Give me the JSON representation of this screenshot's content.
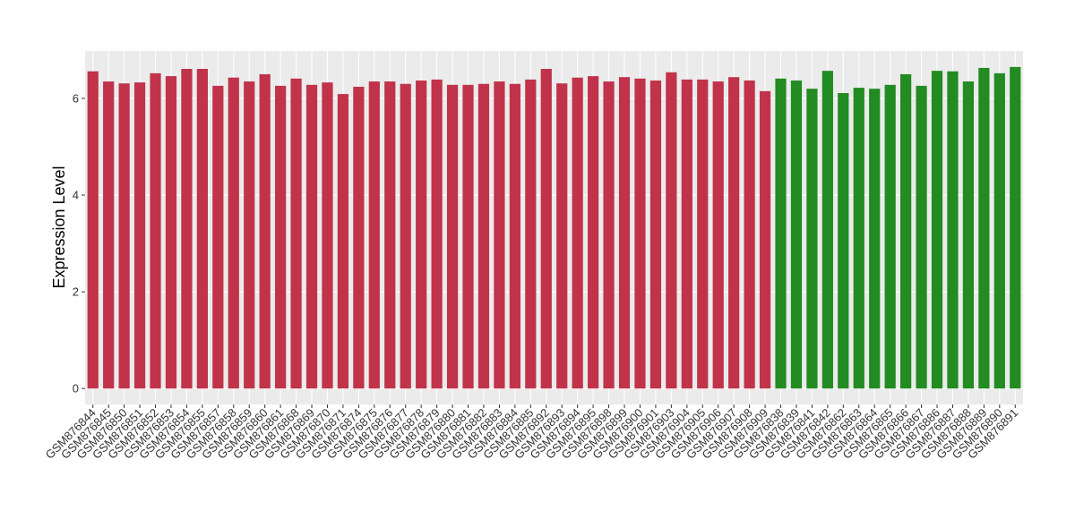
{
  "chart_data": {
    "type": "bar",
    "y_label": "Expression Level",
    "categories": [
      "GSM876844",
      "GSM876845",
      "GSM876850",
      "GSM876851",
      "GSM876852",
      "GSM876853",
      "GSM876854",
      "GSM876855",
      "GSM876857",
      "GSM876858",
      "GSM876859",
      "GSM876860",
      "GSM876861",
      "GSM876868",
      "GSM876869",
      "GSM876870",
      "GSM876871",
      "GSM876874",
      "GSM876875",
      "GSM876876",
      "GSM876877",
      "GSM876878",
      "GSM876879",
      "GSM876880",
      "GSM876881",
      "GSM876882",
      "GSM876883",
      "GSM876884",
      "GSM876885",
      "GSM876892",
      "GSM876893",
      "GSM876894",
      "GSM876895",
      "GSM876898",
      "GSM876899",
      "GSM876900",
      "GSM876901",
      "GSM876903",
      "GSM876904",
      "GSM876905",
      "GSM876906",
      "GSM876907",
      "GSM876908",
      "GSM876909",
      "GSM876838",
      "GSM876839",
      "GSM876841",
      "GSM876842",
      "GSM876862",
      "GSM876863",
      "GSM876864",
      "GSM876865",
      "GSM876866",
      "GSM876867",
      "GSM876886",
      "GSM876887",
      "GSM876888",
      "GSM876889",
      "GSM876890",
      "GSM876891"
    ],
    "values": [
      6.56,
      6.35,
      6.31,
      6.33,
      6.52,
      6.46,
      6.61,
      6.61,
      6.26,
      6.43,
      6.35,
      6.5,
      6.26,
      6.41,
      6.28,
      6.33,
      6.09,
      6.24,
      6.35,
      6.35,
      6.3,
      6.37,
      6.39,
      6.28,
      6.28,
      6.3,
      6.35,
      6.3,
      6.39,
      6.61,
      6.31,
      6.43,
      6.46,
      6.35,
      6.44,
      6.41,
      6.37,
      6.54,
      6.39,
      6.39,
      6.35,
      6.44,
      6.37,
      6.15,
      6.41,
      6.37,
      6.2,
      6.57,
      6.11,
      6.22,
      6.2,
      6.28,
      6.5,
      6.26,
      6.57,
      6.56,
      6.35,
      6.63,
      6.52,
      6.65
    ],
    "colors": [
      "#c0334b",
      "#c0334b",
      "#c0334b",
      "#c0334b",
      "#c0334b",
      "#c0334b",
      "#c0334b",
      "#c0334b",
      "#c0334b",
      "#c0334b",
      "#c0334b",
      "#c0334b",
      "#c0334b",
      "#c0334b",
      "#c0334b",
      "#c0334b",
      "#c0334b",
      "#c0334b",
      "#c0334b",
      "#c0334b",
      "#c0334b",
      "#c0334b",
      "#c0334b",
      "#c0334b",
      "#c0334b",
      "#c0334b",
      "#c0334b",
      "#c0334b",
      "#c0334b",
      "#c0334b",
      "#c0334b",
      "#c0334b",
      "#c0334b",
      "#c0334b",
      "#c0334b",
      "#c0334b",
      "#c0334b",
      "#c0334b",
      "#c0334b",
      "#c0334b",
      "#c0334b",
      "#c0334b",
      "#c0334b",
      "#c0334b",
      "#228b22",
      "#228b22",
      "#228b22",
      "#228b22",
      "#228b22",
      "#228b22",
      "#228b22",
      "#228b22",
      "#228b22",
      "#228b22",
      "#228b22",
      "#228b22",
      "#228b22",
      "#228b22",
      "#228b22",
      "#228b22"
    ],
    "ylim": [
      -0.33,
      6.98
    ],
    "yticks": [
      0,
      2,
      4,
      6
    ],
    "grid": true
  }
}
